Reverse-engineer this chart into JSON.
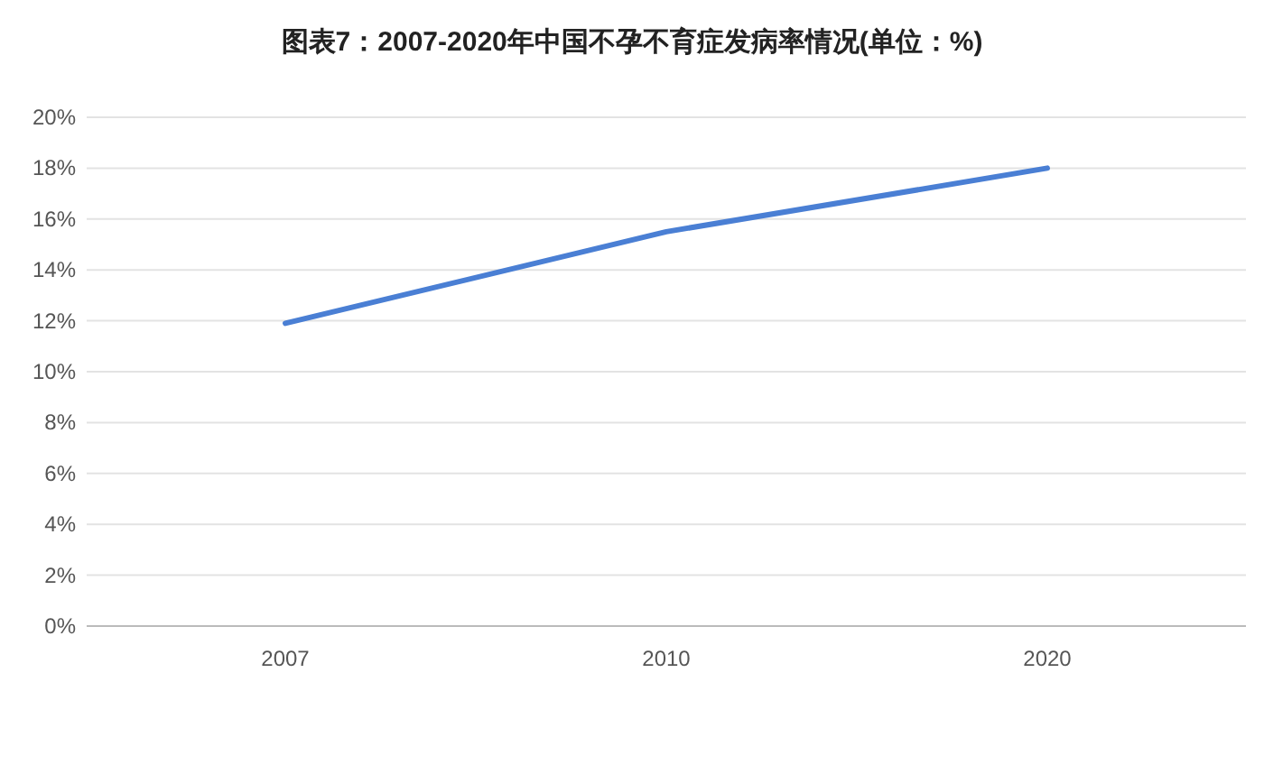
{
  "chart_data": {
    "type": "line",
    "title": "图表7：2007-2020年中国不孕不育症发病率情况(单位：%)",
    "categories": [
      "2007",
      "2010",
      "2020"
    ],
    "series": [
      {
        "color": "#4a7fd4",
        "values": [
          11.9,
          15.5,
          18.0
        ]
      }
    ],
    "ylim": [
      0,
      20
    ],
    "yticks": [
      {
        "value": 0,
        "label": "0%"
      },
      {
        "value": 2,
        "label": "2%"
      },
      {
        "value": 4,
        "label": "4%"
      },
      {
        "value": 6,
        "label": "6%"
      },
      {
        "value": 8,
        "label": "8%"
      },
      {
        "value": 10,
        "label": "10%"
      },
      {
        "value": 12,
        "label": "12%"
      },
      {
        "value": 14,
        "label": "14%"
      },
      {
        "value": 16,
        "label": "16%"
      },
      {
        "value": 18,
        "label": "18%"
      },
      {
        "value": 20,
        "label": "20%"
      }
    ],
    "grid": "y"
  }
}
